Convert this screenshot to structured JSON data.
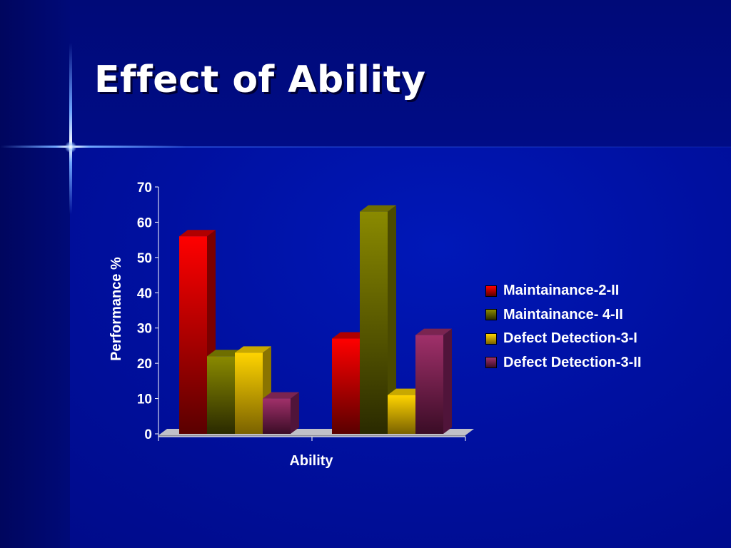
{
  "slide": {
    "title": "Effect of Ability"
  },
  "chart_data": {
    "type": "bar",
    "title": "",
    "xlabel": "Ability",
    "ylabel": "Performance %",
    "ylim": [
      0,
      70
    ],
    "yticks": [
      0,
      10,
      20,
      30,
      40,
      50,
      60,
      70
    ],
    "categories": [
      "",
      ""
    ],
    "series": [
      {
        "name": "Maintainance-2-II",
        "values": [
          56,
          27
        ],
        "color": "#ff0000",
        "dark": "#5a0000",
        "side": "#7a0000",
        "top": "#b00000"
      },
      {
        "name": "Maintainance- 4-II",
        "values": [
          22,
          63
        ],
        "color": "#8a8a00",
        "dark": "#2a2a00",
        "side": "#4a4a00",
        "top": "#6e6e00"
      },
      {
        "name": "Defect Detection-3-I",
        "values": [
          23,
          11
        ],
        "color": "#ffd400",
        "dark": "#7a6200",
        "side": "#8a7400",
        "top": "#c8a800"
      },
      {
        "name": "Defect Detection-3-II",
        "values": [
          10,
          28
        ],
        "color": "#a0306a",
        "dark": "#3a0c26",
        "side": "#50143a",
        "top": "#7a2450"
      }
    ],
    "legend_position": "right",
    "grid": false
  }
}
